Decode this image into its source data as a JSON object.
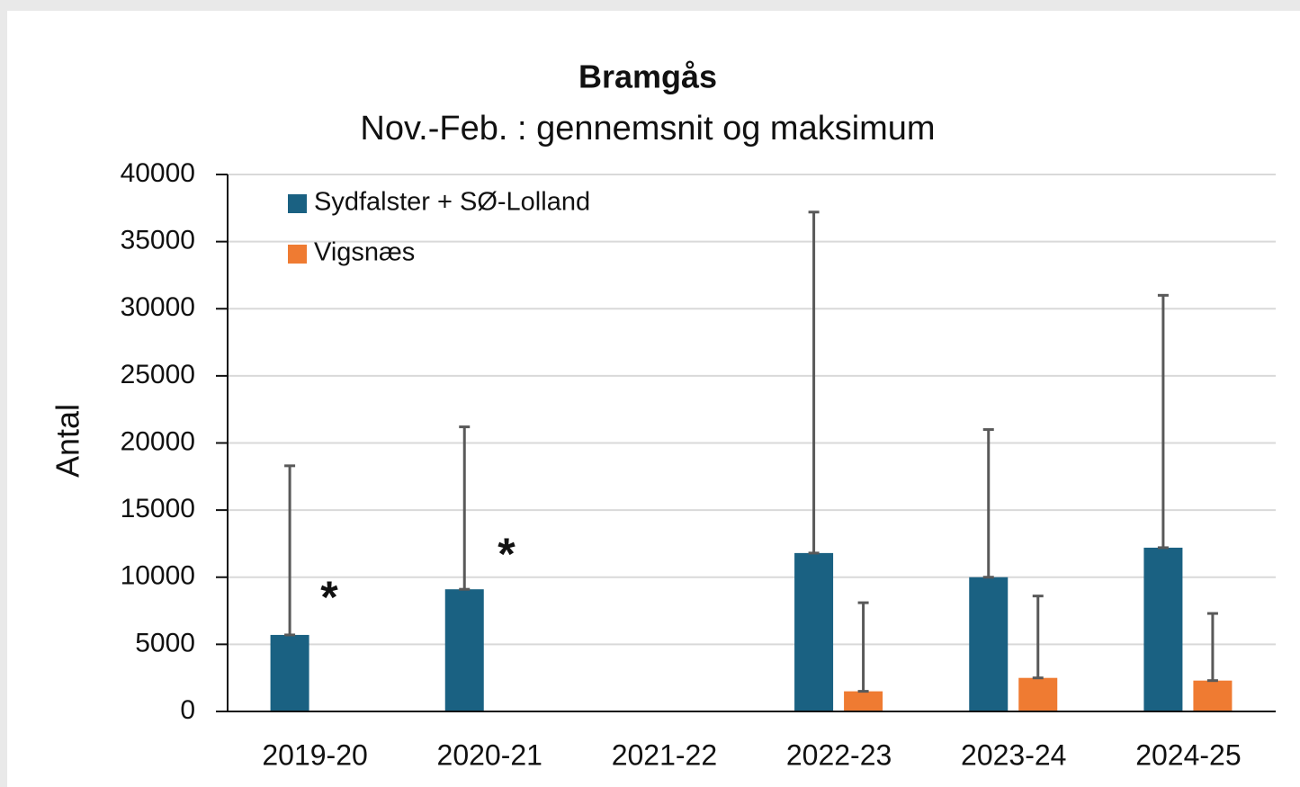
{
  "chart_data": {
    "type": "bar",
    "title": "Bramgås",
    "subtitle": "Nov.-Feb. : gennemsnit og maksimum",
    "ylabel": "Antal",
    "categories": [
      "2019-20",
      "2020-21",
      "2021-22",
      "2022-23",
      "2023-24",
      "2024-25"
    ],
    "series": [
      {
        "name": "Sydfalster + SØ-Lolland",
        "color": "#1a6182",
        "values": [
          5700,
          9100,
          null,
          11800,
          10000,
          12200
        ],
        "max": [
          18300,
          21200,
          null,
          37200,
          21000,
          31000
        ]
      },
      {
        "name": "Vigsnæs",
        "color": "#ef7b32",
        "values": [
          null,
          null,
          null,
          1500,
          2500,
          2300
        ],
        "max": [
          null,
          null,
          null,
          8100,
          8600,
          7300
        ]
      }
    ],
    "annotations": [
      "*",
      "*"
    ],
    "ylim": [
      0,
      40000
    ],
    "yticks": [
      0,
      5000,
      10000,
      15000,
      20000,
      25000,
      30000,
      35000,
      40000
    ],
    "grid": true,
    "legend": "upper left"
  }
}
